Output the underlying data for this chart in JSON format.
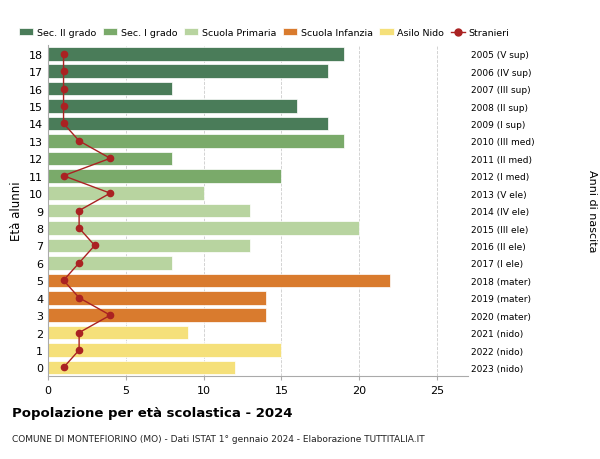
{
  "ages": [
    18,
    17,
    16,
    15,
    14,
    13,
    12,
    11,
    10,
    9,
    8,
    7,
    6,
    5,
    4,
    3,
    2,
    1,
    0
  ],
  "right_labels": [
    "2005 (V sup)",
    "2006 (IV sup)",
    "2007 (III sup)",
    "2008 (II sup)",
    "2009 (I sup)",
    "2010 (III med)",
    "2011 (II med)",
    "2012 (I med)",
    "2013 (V ele)",
    "2014 (IV ele)",
    "2015 (III ele)",
    "2016 (II ele)",
    "2017 (I ele)",
    "2018 (mater)",
    "2019 (mater)",
    "2020 (mater)",
    "2021 (nido)",
    "2022 (nido)",
    "2023 (nido)"
  ],
  "bar_values": [
    19,
    18,
    8,
    16,
    18,
    19,
    8,
    15,
    10,
    13,
    20,
    13,
    8,
    22,
    14,
    14,
    9,
    15,
    12
  ],
  "stranieri_values": [
    1,
    1,
    1,
    1,
    1,
    2,
    4,
    1,
    4,
    2,
    2,
    3,
    2,
    1,
    2,
    4,
    2,
    2,
    1
  ],
  "bar_colors": [
    "#4a7c59",
    "#4a7c59",
    "#4a7c59",
    "#4a7c59",
    "#4a7c59",
    "#7aaa6a",
    "#7aaa6a",
    "#7aaa6a",
    "#b8d4a0",
    "#b8d4a0",
    "#b8d4a0",
    "#b8d4a0",
    "#b8d4a0",
    "#d97b2e",
    "#d97b2e",
    "#d97b2e",
    "#f5e07a",
    "#f5e07a",
    "#f5e07a"
  ],
  "legend_labels": [
    "Sec. II grado",
    "Sec. I grado",
    "Scuola Primaria",
    "Scuola Infanzia",
    "Asilo Nido",
    "Stranieri"
  ],
  "legend_colors": [
    "#4a7c59",
    "#7aaa6a",
    "#b8d4a0",
    "#d97b2e",
    "#f5e07a",
    "#aa2222"
  ],
  "title": "Popolazione per età scolastica - 2024",
  "subtitle": "COMUNE DI MONTEFIORINO (MO) - Dati ISTAT 1° gennaio 2024 - Elaborazione TUTTITALIA.IT",
  "ylabel": "Età alunni",
  "right_ylabel": "Anni di nascita",
  "xlim": [
    0,
    27
  ],
  "xticks": [
    0,
    5,
    10,
    15,
    20,
    25
  ],
  "background_color": "#ffffff",
  "grid_color": "#cccccc",
  "stranieri_line_color": "#aa2222",
  "stranieri_dot_color": "#aa2222"
}
